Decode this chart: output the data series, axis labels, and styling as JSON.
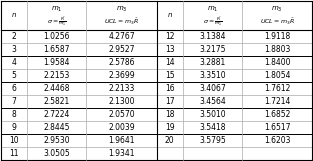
{
  "left_n": [
    2,
    3,
    4,
    5,
    6,
    7,
    8,
    9,
    10,
    11
  ],
  "left_m1": [
    1.0256,
    1.6587,
    1.9584,
    2.2153,
    2.4468,
    2.5821,
    2.7224,
    2.8445,
    2.953,
    3.0505
  ],
  "left_m3": [
    4.2767,
    2.9527,
    2.5786,
    2.3699,
    2.2133,
    2.13,
    2.057,
    2.0039,
    1.9641,
    1.9341
  ],
  "right_n": [
    12,
    13,
    14,
    15,
    16,
    17,
    18,
    19,
    20
  ],
  "right_m1": [
    3.1384,
    3.2175,
    3.2881,
    3.351,
    3.4067,
    3.4564,
    3.501,
    3.5418,
    3.5795
  ],
  "right_m3": [
    1.9118,
    1.8803,
    1.84,
    1.8054,
    1.7612,
    1.7214,
    1.6852,
    1.6517,
    1.6203
  ],
  "background": "#ffffff",
  "grid_color": "#aaaaaa",
  "text_color": "#000000",
  "group_ends": [
    2,
    4,
    6,
    8,
    10
  ]
}
